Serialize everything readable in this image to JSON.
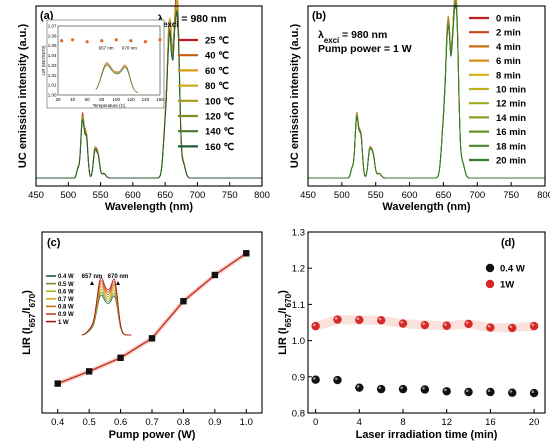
{
  "chart_data": [
    {
      "panel": "(a)",
      "type": "line",
      "xlabel": "Wavelength (nm)",
      "ylabel": "UC emission intensity (a.u.)",
      "xlim": [
        450,
        800
      ],
      "xticks": [
        450,
        500,
        550,
        600,
        650,
        700,
        750,
        800
      ],
      "annotation": {
        "prefix": "λ",
        "sub": "exci",
        "rest": " = 980 nm"
      },
      "legend_position": "top-right",
      "series": [
        {
          "name": "25 ℃",
          "color": "#b91f1f",
          "scale": 1.0
        },
        {
          "name": "40 ℃",
          "color": "#c85a10",
          "scale": 0.99
        },
        {
          "name": "60 ℃",
          "color": "#d59a16",
          "scale": 0.975
        },
        {
          "name": "80 ℃",
          "color": "#c7b21a",
          "scale": 0.96
        },
        {
          "name": "100 ℃",
          "color": "#a09a20",
          "scale": 0.945
        },
        {
          "name": "120 ℃",
          "color": "#7d8f24",
          "scale": 0.93
        },
        {
          "name": "140 ℃",
          "color": "#4d7a2a",
          "scale": 0.915
        },
        {
          "name": "160 ℃",
          "color": "#1d5e34",
          "scale": 0.9
        }
      ],
      "inset": {
        "xlabel": "Temperature (C)",
        "ylabel": "LIR (I657/I670)",
        "xlim": [
          20,
          160
        ],
        "xticks": [
          20,
          40,
          60,
          80,
          100,
          120,
          140,
          160
        ],
        "ylim": [
          1.0,
          1.07
        ],
        "yticks": [
          "1.00",
          "1.01",
          "1.02",
          "1.03",
          "1.04",
          "1.05",
          "1.06",
          "1.07"
        ],
        "points": [
          [
            25,
            1.055
          ],
          [
            40,
            1.056
          ],
          [
            60,
            1.054
          ],
          [
            80,
            1.055
          ],
          [
            100,
            1.056
          ],
          [
            120,
            1.055
          ],
          [
            140,
            1.054
          ],
          [
            160,
            1.056
          ]
        ],
        "peak_labels": [
          "657 nm",
          "670 nm"
        ]
      }
    },
    {
      "panel": "(b)",
      "type": "line",
      "xlabel": "Wavelength (nm)",
      "ylabel": "UC emission intensity (a.u.)",
      "xlim": [
        450,
        800
      ],
      "xticks": [
        450,
        500,
        550,
        600,
        650,
        700,
        750,
        800
      ],
      "annotation": {
        "prefix": "λ",
        "sub": "exci",
        "rest": " = 980 nm",
        "line2": "Pump power = 1 W"
      },
      "legend_position": "top-right",
      "series": [
        {
          "name": "0 min",
          "color": "#b91f1f",
          "scale": 1.0
        },
        {
          "name": "2 min",
          "color": "#c4461a",
          "scale": 0.995
        },
        {
          "name": "4 min",
          "color": "#cc6e14",
          "scale": 0.99
        },
        {
          "name": "6 min",
          "color": "#d49216",
          "scale": 0.985
        },
        {
          "name": "8 min",
          "color": "#d2ae18",
          "scale": 0.98
        },
        {
          "name": "10 min",
          "color": "#bfb41c",
          "scale": 0.975
        },
        {
          "name": "12 min",
          "color": "#a3aa20",
          "scale": 0.97
        },
        {
          "name": "14 min",
          "color": "#879f24",
          "scale": 0.965
        },
        {
          "name": "16 min",
          "color": "#6a9428",
          "scale": 0.96
        },
        {
          "name": "18 min",
          "color": "#4d882a",
          "scale": 0.955
        },
        {
          "name": "20 min",
          "color": "#327a2c",
          "scale": 0.95
        }
      ]
    },
    {
      "panel": "(c)",
      "type": "line",
      "xlabel": "Pump power (W)",
      "ylabel": {
        "main": "LIR (I",
        "sub1": "657",
        "mid": "/I",
        "sub2": "670",
        "end": ")"
      },
      "xlim": [
        0.35,
        1.05
      ],
      "xticks": [
        "0.4",
        "0.5",
        "0.6",
        "0.7",
        "0.8",
        "0.9",
        "1.0"
      ],
      "x": [
        0.4,
        0.5,
        0.6,
        0.7,
        0.8,
        0.9,
        1.0
      ],
      "y": [
        0.815,
        0.842,
        0.872,
        0.915,
        0.997,
        1.055,
        1.103
      ],
      "ylim": [
        0.75,
        1.15
      ],
      "inset": {
        "peak_labels": [
          "657 nm",
          "670 nm"
        ],
        "legend": [
          {
            "name": "0.4 W",
            "color": "#1d5e34"
          },
          {
            "name": "0.5 W",
            "color": "#6a9428"
          },
          {
            "name": "0.6 W",
            "color": "#b3b51c"
          },
          {
            "name": "0.7 W",
            "color": "#d6a616"
          },
          {
            "name": "0.8 W",
            "color": "#cc6e14"
          },
          {
            "name": "0.9 W",
            "color": "#c4461a"
          },
          {
            "name": "1 W",
            "color": "#a31a1a"
          }
        ]
      }
    },
    {
      "panel": "(d)",
      "type": "scatter",
      "xlabel": "Laser irradiation time (min)",
      "ylabel": {
        "main": "LIR (I",
        "sub1": "657",
        "mid": "/I",
        "sub2": "670",
        "end": ")"
      },
      "xlim": [
        -0.7,
        21
      ],
      "xticks": [
        0,
        4,
        8,
        12,
        16,
        20
      ],
      "ylim": [
        0.8,
        1.3
      ],
      "yticks": [
        "0.8",
        "0.9",
        "1.0",
        "1.1",
        "1.2",
        "1.3"
      ],
      "legend_position": "top-right",
      "series": [
        {
          "name": "0.4 W",
          "color": "#111111",
          "x": [
            0,
            2,
            4,
            6,
            8,
            10,
            12,
            14,
            16,
            18,
            20
          ],
          "y": [
            0.892,
            0.891,
            0.87,
            0.866,
            0.866,
            0.865,
            0.86,
            0.858,
            0.858,
            0.856,
            0.855
          ]
        },
        {
          "name": "1W",
          "color": "#d42a2a",
          "x": [
            0,
            2,
            4,
            6,
            8,
            10,
            12,
            14,
            16,
            18,
            20
          ],
          "y": [
            1.04,
            1.058,
            1.057,
            1.056,
            1.047,
            1.043,
            1.041,
            1.046,
            1.036,
            1.035,
            1.04
          ]
        }
      ]
    }
  ]
}
